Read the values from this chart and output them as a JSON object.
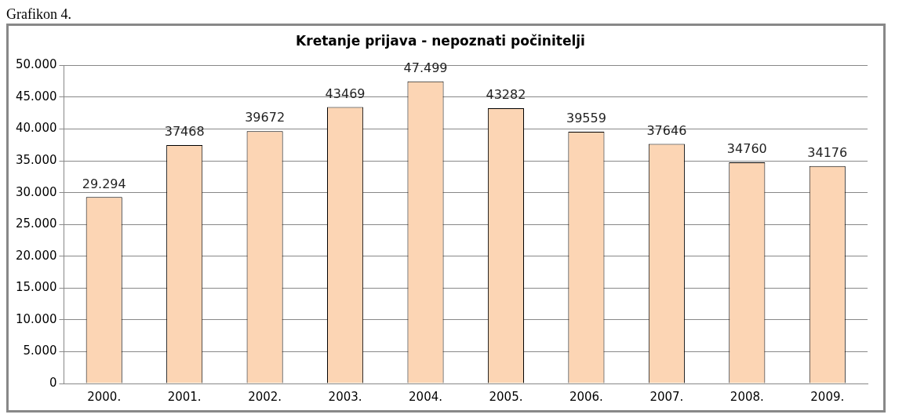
{
  "chart_data": {
    "type": "bar",
    "title": "Kretanje prijava - nepoznati počinitelji",
    "annotations": [
      "Grafikon 4."
    ],
    "categories": [
      "2000.",
      "2001.",
      "2002.",
      "2003.",
      "2004.",
      "2005.",
      "2006.",
      "2007.",
      "2008.",
      "2009."
    ],
    "values": [
      29294,
      37468,
      39672,
      43469,
      47499,
      43282,
      39559,
      37646,
      34760,
      34176
    ],
    "value_labels": [
      "29.294",
      "37468",
      "39672",
      "43469",
      "47.499",
      "43282",
      "39559",
      "37646",
      "34760",
      "34176"
    ],
    "color": "#fcd5b4",
    "ylim": [
      0,
      50000
    ],
    "yticks": [
      {
        "value": 0,
        "label": "0"
      },
      {
        "value": 5000,
        "label": "5.000"
      },
      {
        "value": 10000,
        "label": "10.000"
      },
      {
        "value": 15000,
        "label": "15.000"
      },
      {
        "value": 20000,
        "label": "20.000"
      },
      {
        "value": 25000,
        "label": "25.000"
      },
      {
        "value": 30000,
        "label": "30.000"
      },
      {
        "value": 35000,
        "label": "35.000"
      },
      {
        "value": 40000,
        "label": "40.000"
      },
      {
        "value": 45000,
        "label": "45.000"
      },
      {
        "value": 50000,
        "label": "50.000"
      }
    ],
    "grid": "y",
    "legend": false
  }
}
